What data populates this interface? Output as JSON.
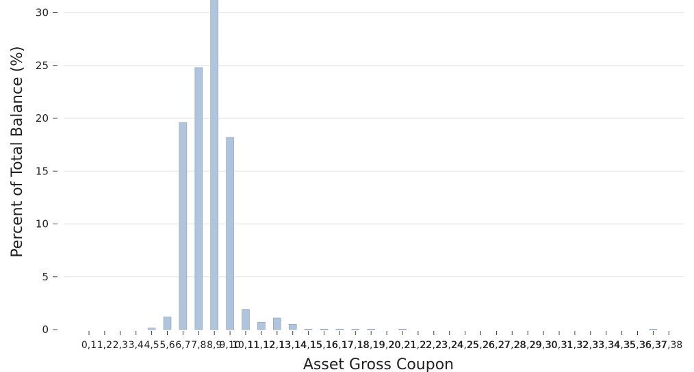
{
  "chart_data": {
    "type": "bar",
    "xlabel": "Asset Gross Coupon",
    "ylabel": "Percent of Total Balance (%)",
    "ylim": [
      0,
      32
    ],
    "yticks": [
      0,
      5,
      10,
      15,
      20,
      25,
      30
    ],
    "grid": "horizontal",
    "bar_color": "#b0c4de",
    "categories": [
      "0,1",
      "1,2",
      "2,3",
      "3,4",
      "4,5",
      "5,6",
      "6,7",
      "7,8",
      "8,9",
      "9,10",
      "10,11",
      "11,12",
      "12,13",
      "13,14",
      "14,15",
      "15,16",
      "16,17",
      "17,18",
      "18,19",
      "19,20",
      "20,21",
      "21,22",
      "22,23",
      "23,24",
      "24,25",
      "25,26",
      "26,27",
      "27,28",
      "28,29",
      "29,30",
      "30,31",
      "31,32",
      "32,33",
      "33,34",
      "34,35",
      "35,36",
      "36,37",
      "37,38"
    ],
    "values": [
      0,
      0,
      0,
      0,
      0.15,
      1.2,
      19.6,
      24.8,
      31.5,
      18.2,
      1.9,
      0.7,
      1.1,
      0.5,
      0.05,
      0.05,
      0.05,
      0.05,
      0.05,
      0,
      0.05,
      0,
      0,
      0,
      0,
      0,
      0,
      0,
      0,
      0,
      0,
      0,
      0,
      0,
      0,
      0,
      0.05,
      0
    ]
  }
}
